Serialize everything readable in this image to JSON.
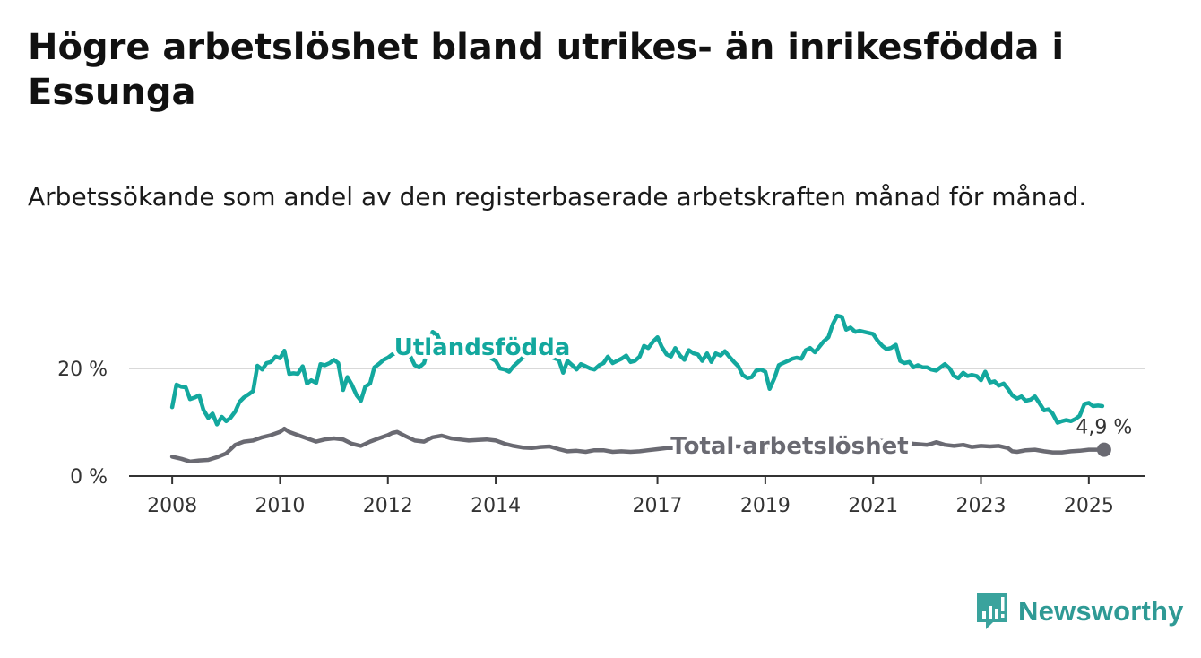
{
  "title": "Högre arbetslöshet bland utrikes- än inrikesfödda i Essunga",
  "subtitle": "Arbetssökande som andel av den registerbaserade arbetskraften månad för månad.",
  "logo_text": "Newsworthy",
  "chart_data": {
    "type": "line",
    "x_ticks": [
      2008,
      2010,
      2012,
      2014,
      2017,
      2019,
      2021,
      2023,
      2025
    ],
    "y_ticks": [
      {
        "value": 0,
        "label": "0 %"
      },
      {
        "value": 20,
        "label": "20 %"
      }
    ],
    "ylim": [
      0,
      30
    ],
    "xlim": [
      2007.2,
      2026.05
    ],
    "grid": "horizontal",
    "end_label": "4,9 %",
    "colors": {
      "utlandsfodda": "#13a89e",
      "total": "#6a6a72",
      "grid": "#d9d9d9",
      "axis": "#333333"
    },
    "series": [
      {
        "name": "Utlandsfödda",
        "points": [
          [
            2008.0,
            12.8
          ],
          [
            2008.08,
            17.0
          ],
          [
            2008.17,
            16.6
          ],
          [
            2008.25,
            16.5
          ],
          [
            2008.33,
            14.3
          ],
          [
            2008.42,
            14.6
          ],
          [
            2008.5,
            15.0
          ],
          [
            2008.58,
            12.3
          ],
          [
            2008.67,
            10.8
          ],
          [
            2008.75,
            11.6
          ],
          [
            2008.83,
            9.6
          ],
          [
            2008.92,
            11.0
          ],
          [
            2009.0,
            10.2
          ],
          [
            2009.08,
            10.8
          ],
          [
            2009.17,
            12.0
          ],
          [
            2009.25,
            13.8
          ],
          [
            2009.33,
            14.6
          ],
          [
            2009.42,
            15.2
          ],
          [
            2009.5,
            15.8
          ],
          [
            2009.58,
            20.5
          ],
          [
            2009.67,
            19.8
          ],
          [
            2009.75,
            21.0
          ],
          [
            2009.83,
            21.2
          ],
          [
            2009.92,
            22.2
          ],
          [
            2010.0,
            21.9
          ],
          [
            2010.08,
            23.3
          ],
          [
            2010.17,
            19.0
          ],
          [
            2010.25,
            19.1
          ],
          [
            2010.33,
            19.0
          ],
          [
            2010.42,
            20.4
          ],
          [
            2010.5,
            17.2
          ],
          [
            2010.58,
            17.8
          ],
          [
            2010.67,
            17.3
          ],
          [
            2010.75,
            20.8
          ],
          [
            2010.83,
            20.6
          ],
          [
            2010.92,
            21.0
          ],
          [
            2011.0,
            21.6
          ],
          [
            2011.08,
            21.0
          ],
          [
            2011.17,
            16.0
          ],
          [
            2011.25,
            18.4
          ],
          [
            2011.33,
            17.0
          ],
          [
            2011.42,
            15.0
          ],
          [
            2011.5,
            14.0
          ],
          [
            2011.58,
            16.6
          ],
          [
            2011.67,
            17.2
          ],
          [
            2011.75,
            20.2
          ],
          [
            2011.83,
            20.8
          ],
          [
            2011.92,
            21.6
          ],
          [
            2012.0,
            22.0
          ],
          [
            2012.08,
            22.6
          ],
          [
            2012.33,
            23.4
          ],
          [
            2012.42,
            22.2
          ],
          [
            2012.5,
            20.6
          ],
          [
            2012.58,
            20.2
          ],
          [
            2012.67,
            21.0
          ],
          [
            2012.83,
            26.8
          ],
          [
            2012.92,
            26.2
          ],
          [
            2013.0,
            24.2
          ],
          [
            2013.5,
            23.0
          ],
          [
            2013.83,
            22.4
          ],
          [
            2014.0,
            21.4
          ],
          [
            2014.08,
            20.0
          ],
          [
            2014.17,
            19.8
          ],
          [
            2014.25,
            19.4
          ],
          [
            2014.33,
            20.4
          ],
          [
            2014.5,
            22.0
          ],
          [
            2014.75,
            23.0
          ],
          [
            2015.0,
            22.2
          ],
          [
            2015.17,
            21.6
          ],
          [
            2015.25,
            19.2
          ],
          [
            2015.33,
            21.4
          ],
          [
            2015.42,
            20.6
          ],
          [
            2015.5,
            19.8
          ],
          [
            2015.58,
            20.8
          ],
          [
            2015.67,
            20.4
          ],
          [
            2015.75,
            20.0
          ],
          [
            2015.83,
            19.8
          ],
          [
            2015.92,
            20.6
          ],
          [
            2016.0,
            21.0
          ],
          [
            2016.08,
            22.2
          ],
          [
            2016.17,
            21.0
          ],
          [
            2016.25,
            21.4
          ],
          [
            2016.33,
            21.8
          ],
          [
            2016.42,
            22.4
          ],
          [
            2016.5,
            21.2
          ],
          [
            2016.58,
            21.4
          ],
          [
            2016.67,
            22.2
          ],
          [
            2016.75,
            24.2
          ],
          [
            2016.83,
            23.8
          ],
          [
            2016.92,
            25.0
          ],
          [
            2017.0,
            25.8
          ],
          [
            2017.08,
            24.0
          ],
          [
            2017.17,
            22.6
          ],
          [
            2017.25,
            22.2
          ],
          [
            2017.33,
            23.8
          ],
          [
            2017.42,
            22.4
          ],
          [
            2017.5,
            21.6
          ],
          [
            2017.58,
            23.4
          ],
          [
            2017.67,
            22.8
          ],
          [
            2017.75,
            22.6
          ],
          [
            2017.83,
            21.4
          ],
          [
            2017.92,
            22.8
          ],
          [
            2018.0,
            21.2
          ],
          [
            2018.08,
            22.8
          ],
          [
            2018.17,
            22.4
          ],
          [
            2018.25,
            23.2
          ],
          [
            2018.33,
            22.2
          ],
          [
            2018.42,
            21.2
          ],
          [
            2018.5,
            20.4
          ],
          [
            2018.58,
            18.8
          ],
          [
            2018.67,
            18.2
          ],
          [
            2018.75,
            18.4
          ],
          [
            2018.83,
            19.6
          ],
          [
            2018.92,
            19.8
          ],
          [
            2019.0,
            19.4
          ],
          [
            2019.08,
            16.2
          ],
          [
            2019.17,
            18.2
          ],
          [
            2019.25,
            20.6
          ],
          [
            2019.33,
            21.0
          ],
          [
            2019.42,
            21.4
          ],
          [
            2019.5,
            21.8
          ],
          [
            2019.58,
            22.0
          ],
          [
            2019.67,
            21.8
          ],
          [
            2019.75,
            23.4
          ],
          [
            2019.83,
            23.8
          ],
          [
            2019.92,
            23.0
          ],
          [
            2020.0,
            24.0
          ],
          [
            2020.08,
            25.0
          ],
          [
            2020.17,
            25.8
          ],
          [
            2020.25,
            28.2
          ],
          [
            2020.33,
            29.8
          ],
          [
            2020.42,
            29.6
          ],
          [
            2020.5,
            27.2
          ],
          [
            2020.58,
            27.6
          ],
          [
            2020.67,
            26.8
          ],
          [
            2020.75,
            27.0
          ],
          [
            2020.83,
            26.8
          ],
          [
            2020.92,
            26.6
          ],
          [
            2021.0,
            26.4
          ],
          [
            2021.08,
            25.2
          ],
          [
            2021.17,
            24.2
          ],
          [
            2021.25,
            23.6
          ],
          [
            2021.33,
            23.8
          ],
          [
            2021.42,
            24.4
          ],
          [
            2021.5,
            21.4
          ],
          [
            2021.58,
            21.0
          ],
          [
            2021.67,
            21.2
          ],
          [
            2021.75,
            20.2
          ],
          [
            2021.83,
            20.6
          ],
          [
            2021.92,
            20.2
          ],
          [
            2022.0,
            20.2
          ],
          [
            2022.08,
            19.8
          ],
          [
            2022.17,
            19.6
          ],
          [
            2022.25,
            20.2
          ],
          [
            2022.33,
            20.8
          ],
          [
            2022.42,
            20.0
          ],
          [
            2022.5,
            18.6
          ],
          [
            2022.58,
            18.2
          ],
          [
            2022.67,
            19.2
          ],
          [
            2022.75,
            18.6
          ],
          [
            2022.83,
            18.8
          ],
          [
            2022.92,
            18.6
          ],
          [
            2023.0,
            17.8
          ],
          [
            2023.08,
            19.4
          ],
          [
            2023.17,
            17.4
          ],
          [
            2023.25,
            17.6
          ],
          [
            2023.33,
            16.8
          ],
          [
            2023.42,
            17.2
          ],
          [
            2023.5,
            16.2
          ],
          [
            2023.58,
            15.0
          ],
          [
            2023.67,
            14.4
          ],
          [
            2023.75,
            14.8
          ],
          [
            2023.83,
            14.0
          ],
          [
            2023.92,
            14.2
          ],
          [
            2024.0,
            14.8
          ],
          [
            2024.08,
            13.6
          ],
          [
            2024.17,
            12.2
          ],
          [
            2024.25,
            12.4
          ],
          [
            2024.33,
            11.6
          ],
          [
            2024.42,
            9.9
          ],
          [
            2024.5,
            10.2
          ],
          [
            2024.58,
            10.4
          ],
          [
            2024.67,
            10.2
          ],
          [
            2024.75,
            10.6
          ],
          [
            2024.83,
            11.2
          ],
          [
            2024.92,
            13.4
          ],
          [
            2025.0,
            13.6
          ],
          [
            2025.08,
            13.0
          ],
          [
            2025.17,
            13.1
          ],
          [
            2025.25,
            13.0
          ]
        ]
      },
      {
        "name": "Total arbetslöshet",
        "points": [
          [
            2008.0,
            3.6
          ],
          [
            2008.17,
            3.2
          ],
          [
            2008.33,
            2.7
          ],
          [
            2008.5,
            2.9
          ],
          [
            2008.67,
            3.0
          ],
          [
            2008.83,
            3.5
          ],
          [
            2009.0,
            4.2
          ],
          [
            2009.17,
            5.8
          ],
          [
            2009.33,
            6.4
          ],
          [
            2009.5,
            6.6
          ],
          [
            2009.67,
            7.2
          ],
          [
            2009.83,
            7.6
          ],
          [
            2010.0,
            8.2
          ],
          [
            2010.08,
            8.8
          ],
          [
            2010.17,
            8.2
          ],
          [
            2010.33,
            7.6
          ],
          [
            2010.5,
            7.0
          ],
          [
            2010.67,
            6.4
          ],
          [
            2010.83,
            6.8
          ],
          [
            2011.0,
            7.0
          ],
          [
            2011.17,
            6.8
          ],
          [
            2011.33,
            6.0
          ],
          [
            2011.5,
            5.6
          ],
          [
            2011.67,
            6.4
          ],
          [
            2011.83,
            7.0
          ],
          [
            2012.0,
            7.6
          ],
          [
            2012.08,
            8.0
          ],
          [
            2012.17,
            8.2
          ],
          [
            2012.33,
            7.4
          ],
          [
            2012.5,
            6.6
          ],
          [
            2012.67,
            6.4
          ],
          [
            2012.83,
            7.2
          ],
          [
            2013.0,
            7.5
          ],
          [
            2013.17,
            7.0
          ],
          [
            2013.33,
            6.8
          ],
          [
            2013.5,
            6.6
          ],
          [
            2013.67,
            6.7
          ],
          [
            2013.83,
            6.8
          ],
          [
            2014.0,
            6.6
          ],
          [
            2014.17,
            6.0
          ],
          [
            2014.33,
            5.6
          ],
          [
            2014.5,
            5.3
          ],
          [
            2014.67,
            5.2
          ],
          [
            2014.83,
            5.4
          ],
          [
            2015.0,
            5.5
          ],
          [
            2015.17,
            5.0
          ],
          [
            2015.33,
            4.6
          ],
          [
            2015.5,
            4.7
          ],
          [
            2015.67,
            4.5
          ],
          [
            2015.83,
            4.8
          ],
          [
            2016.0,
            4.8
          ],
          [
            2016.17,
            4.5
          ],
          [
            2016.33,
            4.6
          ],
          [
            2016.5,
            4.5
          ],
          [
            2016.67,
            4.6
          ],
          [
            2016.83,
            4.8
          ],
          [
            2017.0,
            5.0
          ],
          [
            2017.17,
            5.2
          ],
          [
            2017.33,
            5.2
          ],
          [
            2017.5,
            5.5
          ],
          [
            2017.83,
            5.8
          ],
          [
            2018.5,
            5.5
          ],
          [
            2019.0,
            5.3
          ],
          [
            2019.5,
            5.5
          ],
          [
            2020.0,
            5.8
          ],
          [
            2020.5,
            6.3
          ],
          [
            2021.0,
            6.6
          ],
          [
            2021.5,
            6.4
          ],
          [
            2021.75,
            6.0
          ],
          [
            2022.0,
            5.8
          ],
          [
            2022.08,
            6.0
          ],
          [
            2022.17,
            6.3
          ],
          [
            2022.33,
            5.8
          ],
          [
            2022.5,
            5.6
          ],
          [
            2022.67,
            5.8
          ],
          [
            2022.83,
            5.4
          ],
          [
            2023.0,
            5.6
          ],
          [
            2023.17,
            5.5
          ],
          [
            2023.33,
            5.6
          ],
          [
            2023.5,
            5.2
          ],
          [
            2023.58,
            4.6
          ],
          [
            2023.67,
            4.5
          ],
          [
            2023.83,
            4.8
          ],
          [
            2024.0,
            4.9
          ],
          [
            2024.17,
            4.6
          ],
          [
            2024.33,
            4.4
          ],
          [
            2024.5,
            4.4
          ],
          [
            2024.67,
            4.6
          ],
          [
            2024.83,
            4.7
          ],
          [
            2025.0,
            4.9
          ],
          [
            2025.17,
            4.9
          ],
          [
            2025.25,
            4.9
          ]
        ]
      }
    ]
  }
}
